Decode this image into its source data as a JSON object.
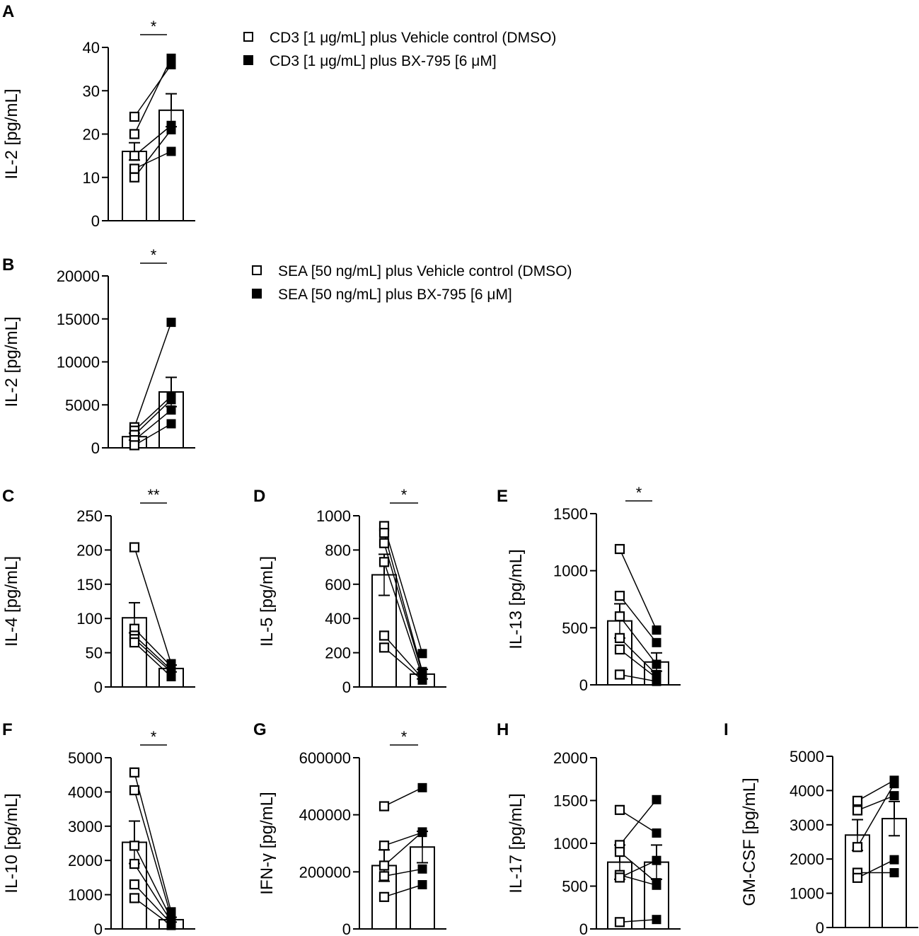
{
  "figure": {
    "legends": [
      {
        "panel": "A",
        "items": [
          {
            "label": "CD3 [1 μg/mL] plus Vehicle control (DMSO)",
            "marker": "open-square"
          },
          {
            "label": "CD3 [1 μg/mL] plus BX-795 [6 μM]",
            "marker": "filled-square"
          }
        ]
      },
      {
        "panel": "B",
        "items": [
          {
            "label": "SEA [50 ng/mL] plus Vehicle control (DMSO)",
            "marker": "open-square"
          },
          {
            "label": "SEA [50 ng/mL] plus BX-795 [6 μM]",
            "marker": "filled-square"
          }
        ]
      }
    ],
    "colors": {
      "axis": "#000000",
      "bar_fill": "#ffffff",
      "bar_edge": "#000000",
      "filled_marker": "#000000"
    }
  },
  "chart_data": [
    {
      "panel": "A",
      "type": "bar",
      "ylabel": "IL-2 [pg/mL]",
      "ylim": [
        0,
        40
      ],
      "yticks": [
        "0",
        "10",
        "20",
        "30",
        "40"
      ],
      "significance": "*",
      "groups": [
        "CD3 [1 μg/mL] plus Vehicle control (DMSO)",
        "CD3 [1 μg/mL] plus BX-795 [6 μM]"
      ],
      "means": [
        16,
        25.5
      ],
      "sem": [
        2,
        3.8
      ],
      "paired_points": [
        [
          24,
          36
        ],
        [
          20,
          37.5
        ],
        [
          15,
          22
        ],
        [
          12,
          16
        ],
        [
          10,
          21
        ]
      ]
    },
    {
      "panel": "B",
      "type": "bar",
      "ylabel": "IL-2 [pg/mL]",
      "ylim": [
        0,
        20000
      ],
      "yticks": [
        "0",
        "5000",
        "10000",
        "15000",
        "20000"
      ],
      "significance": "*",
      "groups": [
        "SEA [50 ng/mL] plus Vehicle control (DMSO)",
        "SEA [50 ng/mL] plus BX-795 [6 μM]"
      ],
      "means": [
        1300,
        6500
      ],
      "sem": [
        400,
        1700
      ],
      "paired_points": [
        [
          2400,
          14600
        ],
        [
          2000,
          6000
        ],
        [
          1500,
          5600
        ],
        [
          900,
          4400
        ],
        [
          300,
          2800
        ]
      ]
    },
    {
      "panel": "C",
      "type": "bar",
      "ylabel": "IL-4 [pg/mL]",
      "ylim": [
        0,
        250
      ],
      "yticks": [
        "0",
        "50",
        "100",
        "150",
        "200",
        "250"
      ],
      "significance": "**",
      "means": [
        101,
        27
      ],
      "sem": [
        22,
        5
      ],
      "paired_points": [
        [
          204,
          34
        ],
        [
          85,
          30
        ],
        [
          75,
          25
        ],
        [
          70,
          22
        ],
        [
          65,
          15
        ]
      ]
    },
    {
      "panel": "D",
      "type": "bar",
      "ylabel": "IL-5 [pg/mL]",
      "ylim": [
        0,
        1000
      ],
      "yticks": [
        "0",
        "200",
        "400",
        "600",
        "800",
        "1000"
      ],
      "significance": "*",
      "means": [
        655,
        75
      ],
      "sem": [
        120,
        28
      ],
      "paired_points": [
        [
          940,
          195
        ],
        [
          900,
          90
        ],
        [
          840,
          80
        ],
        [
          730,
          60
        ],
        [
          300,
          50
        ],
        [
          230,
          40
        ]
      ]
    },
    {
      "panel": "E",
      "type": "bar",
      "ylabel": "IL-13 [pg/mL]",
      "ylim": [
        0,
        1500
      ],
      "yticks": [
        "0",
        "500",
        "1000",
        "1500"
      ],
      "significance": "*",
      "means": [
        560,
        200
      ],
      "sem": [
        150,
        80
      ],
      "paired_points": [
        [
          1190,
          480
        ],
        [
          780,
          370
        ],
        [
          600,
          180
        ],
        [
          410,
          90
        ],
        [
          310,
          60
        ],
        [
          90,
          30
        ]
      ]
    },
    {
      "panel": "F",
      "type": "bar",
      "ylabel": "IL-10 [pg/mL]",
      "ylim": [
        0,
        5000
      ],
      "yticks": [
        "0",
        "1000",
        "2000",
        "3000",
        "4000",
        "5000"
      ],
      "significance": "*",
      "means": [
        2530,
        270
      ],
      "sem": [
        620,
        70
      ],
      "paired_points": [
        [
          4570,
          500
        ],
        [
          4050,
          350
        ],
        [
          2430,
          300
        ],
        [
          1900,
          220
        ],
        [
          1300,
          160
        ],
        [
          900,
          100
        ]
      ]
    },
    {
      "panel": "G",
      "type": "bar",
      "ylabel": "IFN-γ [pg/mL]",
      "ylim": [
        0,
        600000
      ],
      "yticks": [
        "0",
        "200000",
        "400000",
        "600000"
      ],
      "significance": "*",
      "means": [
        222000,
        287000
      ],
      "sem": [
        55000,
        55000
      ],
      "paired_points": [
        [
          430000,
          495000
        ],
        [
          292000,
          338000
        ],
        [
          222000,
          340000
        ],
        [
          185000,
          210000
        ],
        [
          112000,
          155000
        ]
      ]
    },
    {
      "panel": "H",
      "type": "bar",
      "ylabel": "IL-17 [pg/mL]",
      "ylim": [
        0,
        2000
      ],
      "yticks": [
        "0",
        "500",
        "1000",
        "1500",
        "2000"
      ],
      "significance": "",
      "means": [
        780,
        780
      ],
      "sem": [
        200,
        200
      ],
      "paired_points": [
        [
          1390,
          1120
        ],
        [
          980,
          1510
        ],
        [
          900,
          540
        ],
        [
          630,
          510
        ],
        [
          600,
          800
        ],
        [
          80,
          110
        ]
      ]
    },
    {
      "panel": "I",
      "type": "bar",
      "ylabel": "GM-CSF [pg/mL]",
      "ylim": [
        0,
        5000
      ],
      "yticks": [
        "0",
        "1000",
        "2000",
        "3000",
        "4000",
        "5000"
      ],
      "significance": "",
      "means": [
        2700,
        3180
      ],
      "sem": [
        450,
        500
      ],
      "paired_points": [
        [
          3700,
          4300
        ],
        [
          3420,
          3850
        ],
        [
          2350,
          4200
        ],
        [
          1600,
          1600
        ],
        [
          1450,
          1980
        ]
      ]
    }
  ]
}
